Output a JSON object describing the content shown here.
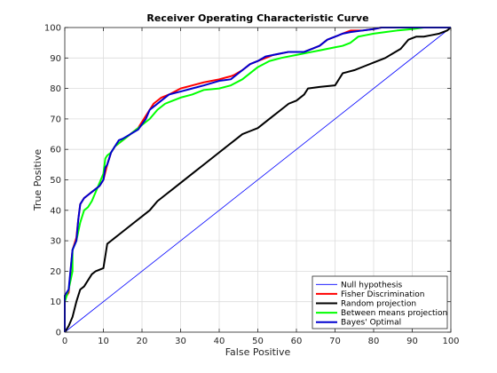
{
  "chart_data": {
    "type": "line",
    "title": "Receiver Operating Characteristic Curve",
    "xlabel": "False Positive",
    "ylabel": "True Positive",
    "xlim": [
      0,
      100
    ],
    "ylim": [
      0,
      100
    ],
    "xticks": [
      0,
      10,
      20,
      30,
      40,
      50,
      60,
      70,
      80,
      90,
      100
    ],
    "yticks": [
      0,
      10,
      20,
      30,
      40,
      50,
      60,
      70,
      80,
      90,
      100
    ],
    "grid": true,
    "legend_position": "bottom-right",
    "series": [
      {
        "name": "Null hypothesis",
        "color": "#0000ff",
        "width": 0.8,
        "points": [
          [
            0,
            0
          ],
          [
            100,
            100
          ]
        ]
      },
      {
        "name": "Fisher Discrimination",
        "color": "#ff0000",
        "width": 2,
        "points": [
          [
            0,
            0
          ],
          [
            0,
            11
          ],
          [
            1,
            13
          ],
          [
            2,
            27
          ],
          [
            3,
            31
          ],
          [
            3.5,
            37
          ],
          [
            4,
            42
          ],
          [
            5,
            44
          ],
          [
            6,
            45
          ],
          [
            7,
            46
          ],
          [
            8,
            47
          ],
          [
            9,
            48
          ],
          [
            10,
            50
          ],
          [
            11,
            55
          ],
          [
            12,
            59
          ],
          [
            13,
            61
          ],
          [
            14,
            62
          ],
          [
            15,
            63
          ],
          [
            17,
            65
          ],
          [
            19,
            67
          ],
          [
            21,
            71
          ],
          [
            22,
            73
          ],
          [
            23,
            75
          ],
          [
            25,
            77
          ],
          [
            27,
            78
          ],
          [
            30,
            80
          ],
          [
            33,
            81
          ],
          [
            36,
            82
          ],
          [
            40,
            83
          ],
          [
            43,
            84
          ],
          [
            44,
            84.5
          ],
          [
            46,
            86
          ],
          [
            48,
            88
          ],
          [
            50,
            89
          ],
          [
            52,
            90
          ],
          [
            54,
            91
          ],
          [
            56,
            91.5
          ],
          [
            58,
            92
          ],
          [
            60,
            92
          ],
          [
            62,
            92
          ],
          [
            64,
            93
          ],
          [
            66,
            94
          ],
          [
            68,
            96
          ],
          [
            70,
            97
          ],
          [
            72,
            98
          ],
          [
            74,
            99
          ],
          [
            77,
            99
          ],
          [
            80,
            99.5
          ],
          [
            82,
            100
          ],
          [
            100,
            100
          ]
        ]
      },
      {
        "name": "Random projection",
        "color": "#000000",
        "width": 2,
        "points": [
          [
            0,
            0
          ],
          [
            1,
            2
          ],
          [
            2,
            5
          ],
          [
            3,
            10
          ],
          [
            4,
            14
          ],
          [
            5,
            15
          ],
          [
            6,
            17
          ],
          [
            7,
            19
          ],
          [
            8,
            20
          ],
          [
            10,
            21
          ],
          [
            11,
            29
          ],
          [
            12,
            30
          ],
          [
            14,
            32
          ],
          [
            16,
            34
          ],
          [
            18,
            36
          ],
          [
            20,
            38
          ],
          [
            22,
            40
          ],
          [
            24,
            43
          ],
          [
            26,
            45
          ],
          [
            28,
            47
          ],
          [
            30,
            49
          ],
          [
            32,
            51
          ],
          [
            34,
            53
          ],
          [
            36,
            55
          ],
          [
            38,
            57
          ],
          [
            40,
            59
          ],
          [
            42,
            61
          ],
          [
            44,
            63
          ],
          [
            46,
            65
          ],
          [
            48,
            66
          ],
          [
            50,
            67
          ],
          [
            52,
            69
          ],
          [
            54,
            71
          ],
          [
            56,
            73
          ],
          [
            58,
            75
          ],
          [
            60,
            76
          ],
          [
            62,
            78
          ],
          [
            63,
            80
          ],
          [
            66,
            80.5
          ],
          [
            70,
            81
          ],
          [
            72,
            85
          ],
          [
            75,
            86
          ],
          [
            78,
            87.5
          ],
          [
            80,
            88.5
          ],
          [
            83,
            90
          ],
          [
            85,
            91.5
          ],
          [
            87,
            93
          ],
          [
            89,
            96
          ],
          [
            91,
            97
          ],
          [
            93,
            97
          ],
          [
            95,
            97.5
          ],
          [
            97,
            98
          ],
          [
            99,
            99
          ],
          [
            100,
            100
          ]
        ]
      },
      {
        "name": "Between means projection",
        "color": "#00ff00",
        "width": 2,
        "points": [
          [
            0,
            0
          ],
          [
            0,
            10
          ],
          [
            1,
            14
          ],
          [
            2,
            20
          ],
          [
            2,
            27
          ],
          [
            3,
            30
          ],
          [
            4,
            36
          ],
          [
            5,
            40
          ],
          [
            6,
            41
          ],
          [
            7,
            43
          ],
          [
            8,
            46
          ],
          [
            9,
            49
          ],
          [
            10,
            52
          ],
          [
            10.5,
            57
          ],
          [
            11,
            58
          ],
          [
            12,
            59
          ],
          [
            13,
            61
          ],
          [
            14,
            62
          ],
          [
            15,
            63
          ],
          [
            17,
            65
          ],
          [
            20,
            68
          ],
          [
            22,
            70
          ],
          [
            24,
            73
          ],
          [
            26,
            75
          ],
          [
            28,
            76
          ],
          [
            30,
            77
          ],
          [
            33,
            78
          ],
          [
            36,
            79.5
          ],
          [
            40,
            80
          ],
          [
            43,
            81
          ],
          [
            46,
            83
          ],
          [
            48,
            85
          ],
          [
            50,
            87
          ],
          [
            53,
            89
          ],
          [
            56,
            90
          ],
          [
            58,
            90.5
          ],
          [
            60,
            91
          ],
          [
            62,
            91.5
          ],
          [
            64,
            92
          ],
          [
            66,
            92.5
          ],
          [
            68,
            93
          ],
          [
            70,
            93.5
          ],
          [
            72,
            94
          ],
          [
            74,
            95
          ],
          [
            76,
            97
          ],
          [
            78,
            97.5
          ],
          [
            80,
            98
          ],
          [
            83,
            98.5
          ],
          [
            86,
            99
          ],
          [
            90,
            99.5
          ],
          [
            93,
            100
          ],
          [
            100,
            100
          ]
        ]
      },
      {
        "name": "Bayes' Optimal",
        "color": "#0000d0",
        "width": 2,
        "points": [
          [
            0,
            0
          ],
          [
            0,
            12
          ],
          [
            1,
            14
          ],
          [
            2,
            27
          ],
          [
            3,
            30
          ],
          [
            3.5,
            37
          ],
          [
            4,
            42
          ],
          [
            5,
            44
          ],
          [
            6,
            45
          ],
          [
            7,
            46
          ],
          [
            8,
            47
          ],
          [
            9,
            48
          ],
          [
            10,
            50
          ],
          [
            10.5,
            54
          ],
          [
            11,
            55
          ],
          [
            12,
            59
          ],
          [
            13,
            61
          ],
          [
            14,
            63
          ],
          [
            15,
            63.5
          ],
          [
            17,
            65
          ],
          [
            19,
            66.5
          ],
          [
            21,
            70
          ],
          [
            22,
            73
          ],
          [
            23,
            74
          ],
          [
            25,
            76
          ],
          [
            27,
            78
          ],
          [
            30,
            79
          ],
          [
            33,
            80
          ],
          [
            36,
            81
          ],
          [
            40,
            82.5
          ],
          [
            43,
            83
          ],
          [
            44,
            84
          ],
          [
            46,
            86
          ],
          [
            48,
            88
          ],
          [
            50,
            89
          ],
          [
            52,
            90.5
          ],
          [
            54,
            91
          ],
          [
            56,
            91.5
          ],
          [
            58,
            92
          ],
          [
            60,
            92
          ],
          [
            62,
            92
          ],
          [
            64,
            93
          ],
          [
            66,
            94
          ],
          [
            68,
            96
          ],
          [
            70,
            97
          ],
          [
            72,
            98
          ],
          [
            74,
            98.5
          ],
          [
            77,
            99
          ],
          [
            80,
            99.5
          ],
          [
            82,
            100
          ],
          [
            100,
            100
          ]
        ]
      }
    ]
  }
}
